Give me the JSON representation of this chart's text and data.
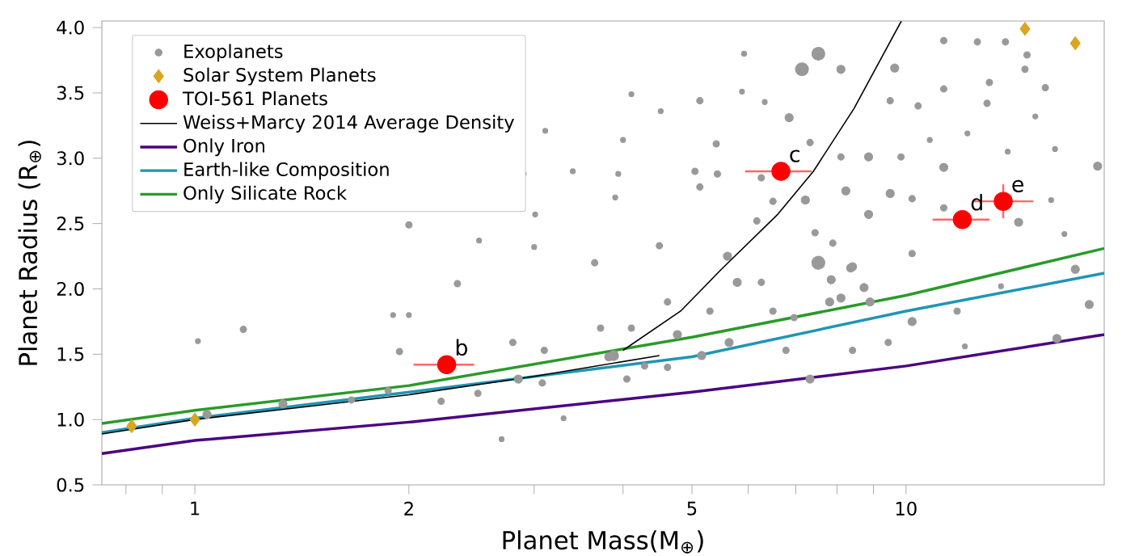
{
  "chart_data": {
    "type": "scatter",
    "xlabel": "Planet Mass(M$_{⊕}$)",
    "ylabel": "Planet Radius (R$_{⊕}$)",
    "log": "x",
    "xlim": [
      0.74,
      19
    ],
    "ylim": [
      0.5,
      4.05
    ],
    "xticks": [
      {
        "value": 0.8,
        "label": null
      },
      {
        "value": 0.9,
        "label": null
      },
      1,
      2,
      {
        "value": 3,
        "label": null
      },
      {
        "value": 4,
        "label": null
      },
      5,
      {
        "value": 6,
        "label": null
      },
      {
        "value": 7,
        "label": null
      },
      {
        "value": 8,
        "label": null
      },
      {
        "value": 9,
        "label": null
      },
      10
    ],
    "yticks": [
      0.5,
      {
        "value": 1,
        "label": "1.0"
      },
      1.5,
      {
        "value": 2,
        "label": "2.0"
      },
      2.5,
      {
        "value": 3,
        "label": "3.0"
      },
      3.5,
      {
        "value": 4,
        "label": "4.0"
      }
    ],
    "legend": "top left",
    "series": [
      {
        "name": "Exoplanets",
        "type": "bubble",
        "marker": "circle",
        "color": "#999999",
        "x": [
          7.53,
          7.14,
          8.1,
          9.64,
          11.3,
          12.6,
          13.8,
          14.8,
          14.7,
          15.7,
          13.1,
          11.3,
          9.5,
          10.4,
          13.0,
          15.2,
          6.85,
          5.41,
          5.05,
          5.43,
          5.13,
          6.26,
          7.33,
          8.1,
          8.86,
          9.84,
          11.3,
          10.8,
          12.2,
          13.9,
          16.2,
          18.6,
          8.23,
          9.5,
          8.86,
          10.2,
          11.3,
          7.22,
          6.5,
          6.17,
          7.45,
          7.89,
          7.53,
          8.41,
          10.2,
          14.4,
          16.0,
          16.7,
          17.3,
          4.11,
          4.52,
          5.13,
          5.88,
          6.33,
          5.92,
          4.0,
          3.94,
          3.9,
          4.5,
          5.61,
          3.11,
          3.4,
          2.9,
          3.01,
          2.0,
          3.0,
          2.51,
          3.65,
          2.0,
          1.9,
          2.34,
          1.17,
          1.01,
          1.94,
          2.8,
          3.1,
          3.08,
          2.85,
          2.5,
          2.22,
          3.3,
          2.7,
          1.33,
          1.04,
          1.66,
          1.87,
          3.82,
          3.72,
          5.79,
          8.36,
          7.85,
          7.81,
          8.1,
          8.73,
          8.9,
          4.62,
          4.77,
          3.88,
          4.05,
          4.62,
          5.16,
          5.64,
          6.78,
          7.33,
          6.96,
          10.2,
          9.44,
          8.41,
          12.1,
          16.3,
          18.1,
          11.8,
          13.6,
          6.5,
          5.3,
          6.26,
          4.11,
          4.29
        ],
        "values": [
          3.8,
          3.68,
          3.68,
          3.69,
          3.9,
          3.89,
          3.89,
          3.79,
          3.68,
          3.54,
          3.58,
          3.53,
          3.44,
          3.4,
          3.42,
          3.32,
          3.31,
          3.11,
          2.9,
          2.88,
          2.78,
          2.85,
          3.12,
          3.01,
          3.01,
          3.01,
          2.93,
          3.14,
          3.19,
          3.05,
          3.07,
          2.94,
          2.75,
          2.73,
          2.57,
          2.69,
          2.62,
          2.68,
          2.67,
          2.52,
          2.43,
          2.35,
          2.2,
          2.17,
          2.27,
          2.51,
          2.68,
          2.42,
          2.15,
          3.49,
          3.36,
          3.44,
          3.51,
          3.43,
          3.8,
          3.14,
          2.88,
          2.7,
          2.33,
          2.25,
          3.21,
          2.9,
          2.88,
          2.57,
          2.49,
          2.32,
          2.37,
          2.2,
          1.8,
          1.8,
          2.04,
          1.69,
          1.6,
          1.52,
          1.59,
          1.53,
          1.28,
          1.31,
          1.2,
          1.14,
          1.01,
          0.85,
          1.12,
          1.04,
          1.15,
          1.22,
          1.48,
          1.7,
          2.05,
          2.16,
          2.07,
          1.9,
          1.93,
          2.01,
          1.9,
          1.9,
          1.65,
          1.49,
          1.31,
          1.4,
          1.49,
          1.59,
          1.53,
          1.31,
          1.78,
          1.75,
          1.59,
          1.53,
          1.56,
          1.62,
          1.88,
          1.83,
          2.02,
          1.83,
          1.83,
          2.05,
          1.7,
          1.41
        ],
        "sizes": [
          1,
          1,
          0.4,
          0.4,
          0.25,
          0.25,
          0.25,
          0.25,
          0.25,
          0.25,
          0.25,
          0.25,
          0.25,
          0.25,
          0.25,
          0.15,
          0.4,
          0.25,
          0.25,
          0.25,
          0.25,
          0.25,
          0.25,
          0.25,
          0.4,
          0.25,
          0.4,
          0.15,
          0.15,
          0.15,
          0.15,
          0.4,
          0.4,
          0.4,
          0.4,
          0.25,
          0.25,
          0.4,
          0.25,
          0.25,
          0.25,
          0.25,
          1,
          0.4,
          0.25,
          0.4,
          0.15,
          0.15,
          0.4,
          0.15,
          0.15,
          0.25,
          0.15,
          0.15,
          0.15,
          0.15,
          0.15,
          0.15,
          0.25,
          0.4,
          0.15,
          0.15,
          0.15,
          0.15,
          0.25,
          0.15,
          0.15,
          0.25,
          0.15,
          0.15,
          0.25,
          0.25,
          0.15,
          0.25,
          0.25,
          0.25,
          0.25,
          0.4,
          0.25,
          0.25,
          0.15,
          0.15,
          0.4,
          0.4,
          0.25,
          0.25,
          0.4,
          0.25,
          0.4,
          0.4,
          0.4,
          0.4,
          0.4,
          0.4,
          0.4,
          0.25,
          0.4,
          0.6,
          0.25,
          0.25,
          0.4,
          0.4,
          0.25,
          0.4,
          0.25,
          0.4,
          0.25,
          0.25,
          0.15,
          0.4,
          0.4,
          0.25,
          0.15,
          0.25,
          0.25,
          0.25,
          0.25,
          0.25
        ]
      },
      {
        "name": "Solar System Planets",
        "type": "scatter",
        "marker": "diamond",
        "color": "#daa520",
        "x": [
          0.815,
          1,
          14.7,
          17.3
        ],
        "values": [
          0.95,
          1.0,
          3.99,
          3.88
        ]
      },
      {
        "name": "TOI-561 Planets",
        "type": "scatter",
        "marker": "circle",
        "color": "#ff0000",
        "x": [
          2.26,
          6.67,
          12.0,
          13.7
        ],
        "values": [
          1.42,
          2.9,
          2.53,
          2.67
        ],
        "xerrors": [
          [
            2.03,
            2.47
          ],
          [
            5.94,
            7.37
          ],
          [
            10.9,
            13.1
          ],
          [
            12.4,
            15.1
          ]
        ],
        "errors": [
          null,
          null,
          null,
          [
            2.54,
            2.8
          ]
        ]
      },
      {
        "name": "Weiss+Marcy 2014 Average Density",
        "type": "line",
        "marker": "none",
        "color": "#000000",
        "x": [
          0.74,
          1,
          2,
          3,
          4.5
        ],
        "values": [
          0.89,
          1.0,
          1.19,
          1.33,
          1.49
        ]
      },
      {
        "type": "line",
        "marker": "none",
        "color": "#000000",
        "x": [
          4.0,
          4.82,
          5.5,
          6.6,
          7.41,
          8.45,
          9.85
        ],
        "values": [
          1.53,
          1.83,
          2.15,
          2.57,
          2.9,
          3.38,
          4.05
        ]
      },
      {
        "name": "Only Iron",
        "type": "line",
        "marker": "none",
        "color": "#4b0082",
        "x": [
          0.74,
          1,
          2,
          5,
          10,
          19
        ],
        "values": [
          0.74,
          0.84,
          0.98,
          1.21,
          1.41,
          1.65
        ]
      },
      {
        "name": "Earth-like Composition",
        "type": "line",
        "marker": "none",
        "color": "#1f96b4",
        "x": [
          0.74,
          1,
          2,
          5,
          10,
          19
        ],
        "values": [
          0.9,
          1.01,
          1.21,
          1.48,
          1.83,
          2.12
        ]
      },
      {
        "name": "Only Silicate Rock",
        "type": "line",
        "marker": "none",
        "color": "#2a9a2a",
        "x": [
          0.74,
          1,
          2,
          5,
          10,
          19
        ],
        "values": [
          0.97,
          1.07,
          1.26,
          1.63,
          1.95,
          2.31
        ]
      }
    ],
    "annotations": [
      {
        "text": "b",
        "x": 2.26,
        "y": 1.42
      },
      {
        "text": "c",
        "x": 6.67,
        "y": 2.9
      },
      {
        "text": "d",
        "x": 12.0,
        "y": 2.53
      },
      {
        "text": "e",
        "x": 13.7,
        "y": 2.67
      }
    ]
  }
}
